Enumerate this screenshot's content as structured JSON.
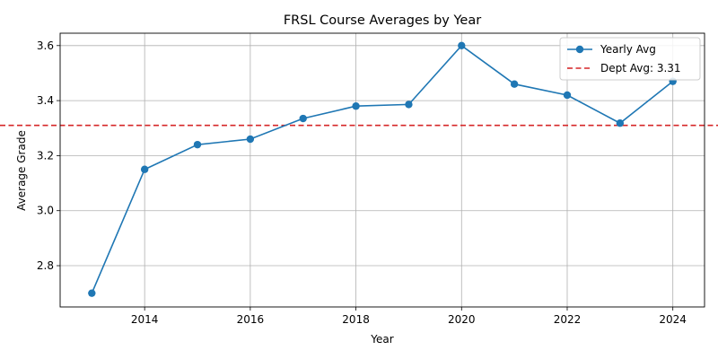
{
  "chart_data": {
    "type": "line",
    "title": "FRSL Course Averages by Year",
    "xlabel": "Year",
    "ylabel": "Average Grade",
    "xlim": [
      2012.4,
      2024.6
    ],
    "ylim": [
      2.65,
      3.645
    ],
    "xticks": [
      2014,
      2016,
      2018,
      2020,
      2022,
      2024
    ],
    "yticks": [
      2.8,
      3.0,
      3.2,
      3.4,
      3.6
    ],
    "grid": true,
    "legend_position": "top-right",
    "series": [
      {
        "name": "Yearly Avg",
        "color": "#1f77b4",
        "marker": "circle",
        "x": [
          2013,
          2014,
          2015,
          2016,
          2017,
          2018,
          2019,
          2020,
          2021,
          2022,
          2023,
          2024
        ],
        "values": [
          2.7,
          3.15,
          3.24,
          3.26,
          3.335,
          3.38,
          3.386,
          3.6,
          3.46,
          3.42,
          3.318,
          3.47
        ]
      }
    ],
    "reference_line": {
      "label": "Dept Avg: 3.31",
      "value": 3.31,
      "color": "#d62728",
      "style": "dashed"
    }
  }
}
